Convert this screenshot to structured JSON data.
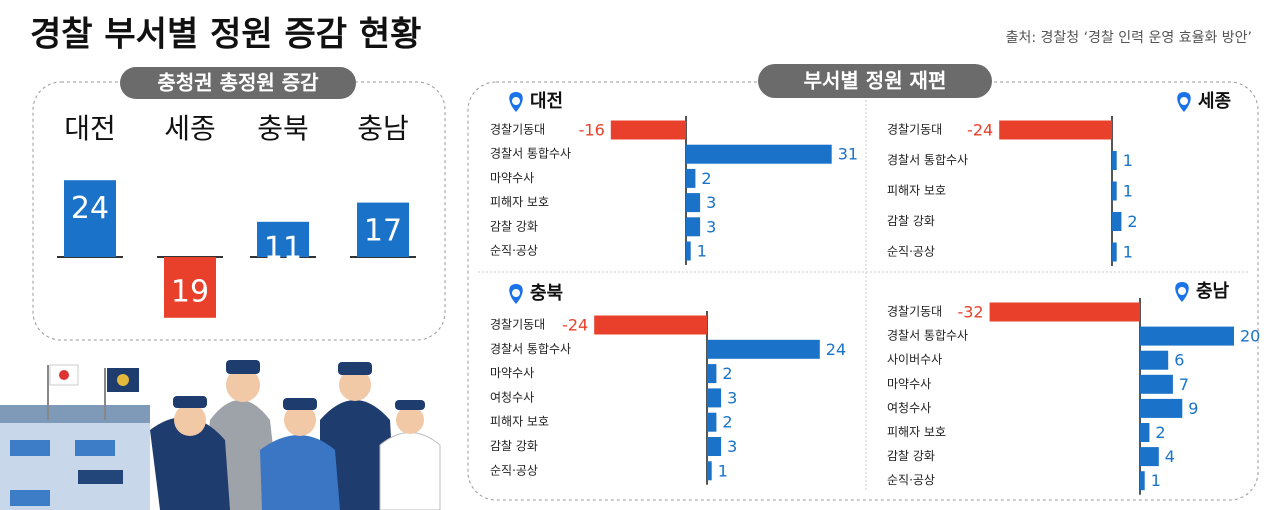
{
  "header": {
    "title": "경찰 부서별 정원 증감 현황",
    "source": "출처: 경찰청 ‘경찰 인력 운영 효율화 방안’"
  },
  "right_panel": {
    "title": "부서별 정원 재편"
  },
  "chart_data": [
    {
      "type": "bar",
      "title": "충청권 총정원 증감",
      "categories": [
        "대전",
        "세종",
        "충북",
        "충남"
      ],
      "values": [
        24,
        -19,
        11,
        17
      ],
      "value_labels": [
        "24",
        "19",
        "11",
        "17"
      ],
      "color": "#1a73c8",
      "negative_color": "#e8402a"
    },
    {
      "type": "hbar",
      "title": "대전",
      "categories": [
        "경찰기동대",
        "경찰서 통합수사",
        "마약수사",
        "피해자 보호",
        "감찰 강화",
        "순직·공상"
      ],
      "values": [
        -16,
        31,
        2,
        3,
        3,
        1
      ],
      "color": "#1a73c8",
      "negative_color": "#e8402a"
    },
    {
      "type": "hbar",
      "title": "세종",
      "categories": [
        "경찰기동대",
        "경찰서 통합수사",
        "피해자 보호",
        "감찰 강화",
        "순직·공상"
      ],
      "values": [
        -24,
        1,
        1,
        2,
        1
      ],
      "color": "#1a73c8",
      "negative_color": "#e8402a"
    },
    {
      "type": "hbar",
      "title": "충북",
      "categories": [
        "경찰기동대",
        "경찰서 통합수사",
        "마약수사",
        "여청수사",
        "피해자 보호",
        "감찰 강화",
        "순직·공상"
      ],
      "values": [
        -24,
        24,
        2,
        3,
        2,
        3,
        1
      ],
      "color": "#1a73c8",
      "negative_color": "#e8402a"
    },
    {
      "type": "hbar",
      "title": "충남",
      "categories": [
        "경찰기동대",
        "경찰서 통합수사",
        "사이버수사",
        "마약수사",
        "여청수사",
        "피해자 보호",
        "감찰 강화",
        "순직·공상"
      ],
      "values": [
        -32,
        20,
        6,
        7,
        9,
        2,
        4,
        1
      ],
      "color": "#1a73c8",
      "negative_color": "#e8402a"
    }
  ]
}
